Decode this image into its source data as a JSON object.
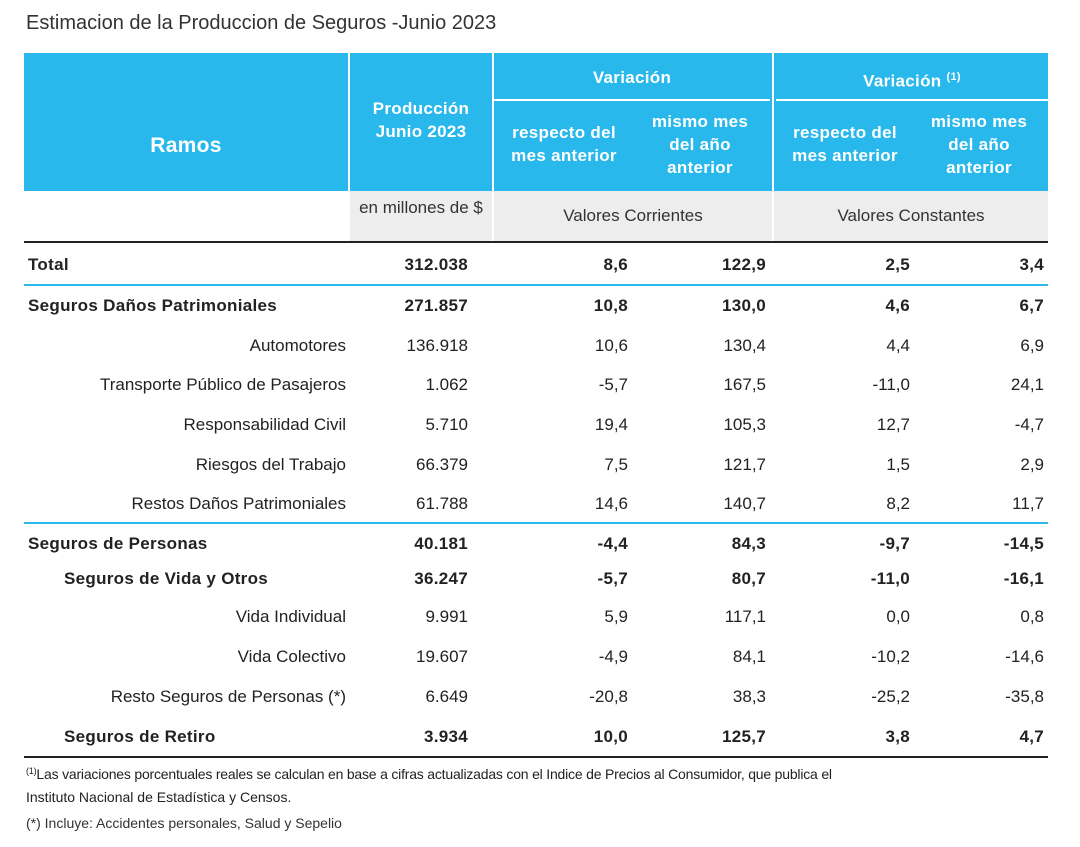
{
  "title": "Estimacion de la Produccion de Seguros -Junio 2023",
  "header": {
    "ramos": "Ramos",
    "produccion": "Producción Junio 2023",
    "variacion_corr": "Variación",
    "variacion_const": "Variación",
    "variacion_const_sup": "(1)",
    "resp_mes_anterior": "respecto del mes anterior",
    "mismo_mes": "mismo mes del año anterior",
    "unidad": "en millones de $",
    "valores_corrientes": "Valores Corrientes",
    "valores_constantes": "Valores Constantes"
  },
  "rows": [
    {
      "label": "Total",
      "prod": "312.038",
      "v1": "8,6",
      "v2": "122,9",
      "v3": "2,5",
      "v4": "3,4"
    },
    {
      "label": "Seguros Daños Patrimoniales",
      "prod": "271.857",
      "v1": "10,8",
      "v2": "130,0",
      "v3": "4,6",
      "v4": "6,7"
    },
    {
      "label": "Automotores",
      "prod": "136.918",
      "v1": "10,6",
      "v2": "130,4",
      "v3": "4,4",
      "v4": "6,9"
    },
    {
      "label": "Transporte Público de Pasajeros",
      "prod": "1.062",
      "v1": "-5,7",
      "v2": "167,5",
      "v3": "-11,0",
      "v4": "24,1"
    },
    {
      "label": "Responsabilidad Civil",
      "prod": "5.710",
      "v1": "19,4",
      "v2": "105,3",
      "v3": "12,7",
      "v4": "-4,7"
    },
    {
      "label": "Riesgos del Trabajo",
      "prod": "66.379",
      "v1": "7,5",
      "v2": "121,7",
      "v3": "1,5",
      "v4": "2,9"
    },
    {
      "label": "Restos Daños Patrimoniales",
      "prod": "61.788",
      "v1": "14,6",
      "v2": "140,7",
      "v3": "8,2",
      "v4": "11,7"
    },
    {
      "label": "Seguros de Personas",
      "prod": "40.181",
      "v1": "-4,4",
      "v2": "84,3",
      "v3": "-9,7",
      "v4": "-14,5"
    },
    {
      "label": "Seguros de Vida y Otros",
      "prod": "36.247",
      "v1": "-5,7",
      "v2": "80,7",
      "v3": "-11,0",
      "v4": "-16,1"
    },
    {
      "label": "Vida Individual",
      "prod": "9.991",
      "v1": "5,9",
      "v2": "117,1",
      "v3": "0,0",
      "v4": "0,8"
    },
    {
      "label": "Vida Colectivo",
      "prod": "19.607",
      "v1": "-4,9",
      "v2": "84,1",
      "v3": "-10,2",
      "v4": "-14,6"
    },
    {
      "label": "Resto Seguros de Personas (*)",
      "prod": "6.649",
      "v1": "-20,8",
      "v2": "38,3",
      "v3": "-25,2",
      "v4": "-35,8"
    },
    {
      "label": "Seguros de Retiro",
      "prod": "3.934",
      "v1": "10,0",
      "v2": "125,7",
      "v3": "3,8",
      "v4": "4,7"
    }
  ],
  "notes": {
    "sup": "(1)",
    "line1": "Las variaciones porcentuales reales se calculan en base a cifras actualizadas con  el Indice de Precios al Consumidor, que publica el",
    "line2": "Instituto Nacional de Estadística y  Censos.",
    "line3": "(*) Incluye: Accidentes personales, Salud y Sepelio"
  }
}
